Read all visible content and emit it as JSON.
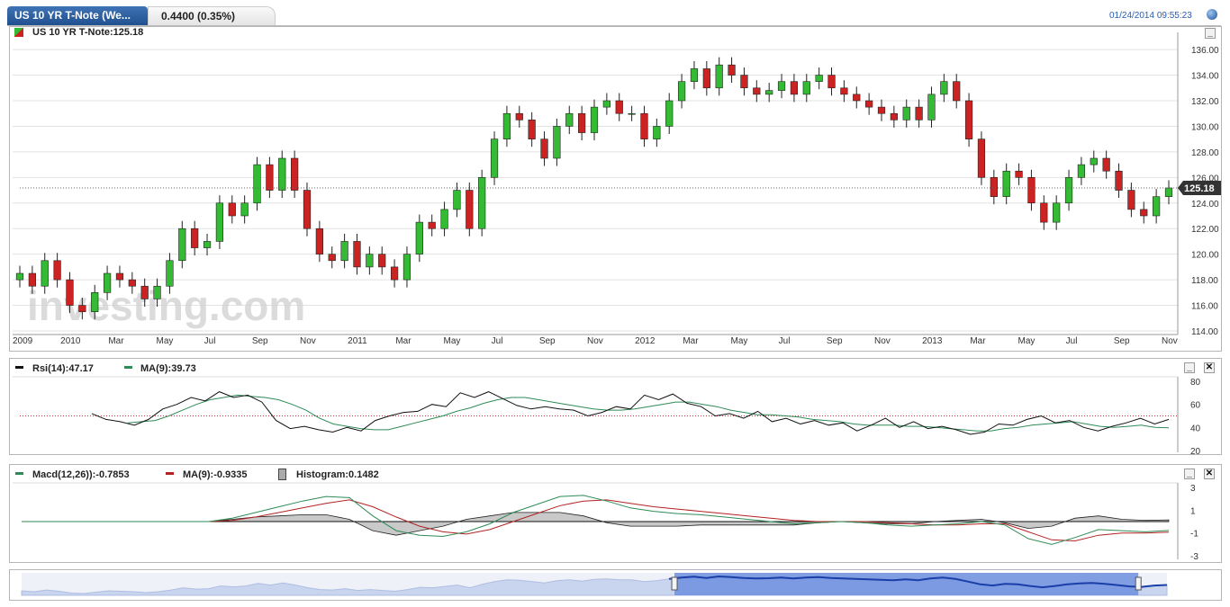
{
  "header": {
    "tab_label": "US 10 YR T-Note (We...",
    "change_label": "0.4400 (0.35%)",
    "timestamp": "01/24/2014 09:55:23"
  },
  "main_chart": {
    "legend_label": "US 10 YR T-Note:125.18",
    "last_price_label": "125.18",
    "watermark": "investing.com",
    "colors": {
      "up": "#33bb33",
      "down": "#cc2222",
      "grid": "#e2e2e2"
    }
  },
  "rsi_panel": {
    "rsi_label": "Rsi(14):47.17",
    "ma_label": "MA(9):39.73"
  },
  "macd_panel": {
    "macd_label": "Macd(12,26)):-0.7853",
    "ma_label": "MA(9):-0.9335",
    "hist_label": "Histogram:0.1482"
  },
  "navigator": {
    "selected_range": [
      0.57,
      0.975
    ]
  },
  "chart_data": [
    {
      "type": "candlestick",
      "title": "US 10 YR T-Note:125.18",
      "x_ticks": [
        "2009",
        "2010",
        "Mar",
        "May",
        "Jul",
        "Sep",
        "Nov",
        "2011",
        "Mar",
        "May",
        "Jul",
        "Sep",
        "Nov",
        "2012",
        "Mar",
        "May",
        "Jul",
        "Sep",
        "Nov",
        "2013",
        "Mar",
        "May",
        "Jul",
        "Sep",
        "Nov"
      ],
      "y_ticks": [
        114,
        116,
        118,
        120,
        122,
        124,
        126,
        128,
        130,
        132,
        134,
        136
      ],
      "ylim": [
        114,
        136.5
      ],
      "last_value": 125.18,
      "close_series_approx": [
        118.5,
        117.5,
        119.5,
        118,
        116,
        115.5,
        117,
        118.5,
        118,
        117.5,
        116.5,
        117.5,
        119.5,
        122,
        120.5,
        121,
        124,
        123,
        124,
        127,
        125,
        127.5,
        125,
        122,
        120,
        119.5,
        121,
        119,
        120,
        119,
        118,
        120,
        122.5,
        122,
        123.5,
        125,
        122,
        126,
        129,
        131,
        130.5,
        129,
        127.5,
        130,
        131,
        129.5,
        131.5,
        132,
        131,
        131,
        129,
        130,
        132,
        133.5,
        134.5,
        133,
        134.8,
        134,
        133,
        132.5,
        132.8,
        133.5,
        132.5,
        133.5,
        134,
        133,
        132.5,
        132,
        131.5,
        131,
        130.5,
        131.5,
        130.5,
        132.5,
        133.5,
        132,
        129,
        126,
        124.5,
        126.5,
        126,
        124,
        122.5,
        124,
        126,
        127,
        127.5,
        126.5,
        125,
        123.5,
        123,
        124.5,
        125.18
      ]
    },
    {
      "type": "line",
      "title": "Rsi(14):47.17",
      "series": [
        {
          "name": "Rsi(14)"
        },
        {
          "name": "MA(9)"
        }
      ],
      "y_ticks": [
        20,
        40,
        60,
        80
      ],
      "ylim": [
        20,
        80
      ],
      "reference_line": 50,
      "rsi_approx": [
        52,
        47,
        45,
        42,
        47,
        56,
        60,
        66,
        63,
        71,
        66,
        68,
        62,
        46,
        39,
        41,
        38,
        36,
        40,
        37,
        46,
        50,
        53,
        54,
        60,
        58,
        70,
        66,
        71,
        65,
        59,
        56,
        58,
        56,
        55,
        50,
        53,
        58,
        56,
        68,
        64,
        69,
        61,
        58,
        50,
        52,
        48,
        54,
        45,
        48,
        43,
        46,
        42,
        44,
        37,
        42,
        48,
        40,
        45,
        39,
        41,
        38,
        34,
        36,
        43,
        42,
        47,
        50,
        44,
        46,
        40,
        37,
        41,
        44,
        48,
        43,
        47
      ],
      "ma_approx": [
        44,
        45,
        46,
        50,
        55,
        60,
        64,
        66,
        68,
        67,
        66,
        64,
        60,
        55,
        48,
        43,
        41,
        39,
        38,
        38,
        41,
        44,
        47,
        50,
        54,
        57,
        61,
        64,
        66,
        66,
        64,
        62,
        60,
        58,
        56,
        55,
        55,
        56,
        58,
        60,
        62,
        62,
        60,
        58,
        55,
        53,
        51,
        51,
        50,
        49,
        47,
        46,
        45,
        43,
        42,
        42,
        42,
        41,
        41,
        40,
        39,
        38,
        37,
        37,
        39,
        40,
        42,
        43,
        44,
        45,
        43,
        41,
        40,
        41,
        42,
        40,
        39.73
      ]
    },
    {
      "type": "line",
      "title": "Macd(12,26)):-0.7853",
      "series": [
        {
          "name": "Macd(12,26))"
        },
        {
          "name": "MA(9)"
        },
        {
          "name": "Histogram"
        }
      ],
      "y_ticks": [
        -3,
        -1,
        1,
        3
      ],
      "ylim": [
        -3,
        3
      ],
      "macd_approx": [
        0,
        0,
        0,
        0,
        0,
        0,
        0,
        0,
        0,
        0.3,
        0.8,
        1.3,
        1.8,
        2.2,
        2.1,
        0.5,
        -0.8,
        -1.2,
        -1.3,
        -0.9,
        -0.2,
        0.8,
        1.5,
        2.2,
        2.3,
        1.8,
        1.2,
        0.9,
        0.7,
        0.6,
        0.4,
        0.2,
        0,
        -0.2,
        -0.1,
        0,
        -0.1,
        -0.3,
        -0.4,
        -0.3,
        -0.2,
        0,
        -0.3,
        -1.5,
        -2.0,
        -1.4,
        -0.7,
        -0.8,
        -0.9,
        -0.7853
      ],
      "signal_approx": [
        0,
        0,
        0,
        0,
        0,
        0,
        0,
        0,
        0,
        0.1,
        0.4,
        0.8,
        1.2,
        1.6,
        1.9,
        1.3,
        0.4,
        -0.4,
        -0.9,
        -1.1,
        -0.7,
        0,
        0.7,
        1.4,
        1.8,
        1.9,
        1.6,
        1.3,
        1.1,
        0.9,
        0.7,
        0.5,
        0.3,
        0.1,
        0,
        0,
        0,
        -0.1,
        -0.2,
        -0.3,
        -0.3,
        -0.2,
        -0.2,
        -0.9,
        -1.6,
        -1.7,
        -1.2,
        -1.0,
        -1.0,
        -0.9335
      ],
      "last_histogram": 0.1482
    }
  ]
}
